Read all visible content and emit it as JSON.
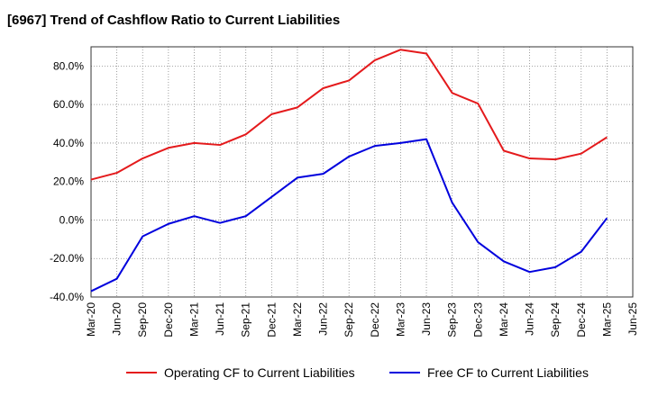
{
  "chart_data": {
    "type": "line",
    "title": "[6967]  Trend of Cashflow Ratio to Current Liabilities",
    "xlabel": "",
    "ylabel": "",
    "ylim": [
      -40,
      90
    ],
    "y_ticks": [
      -40,
      -20,
      0,
      20,
      40,
      60,
      80
    ],
    "y_tick_labels": [
      "-40.0%",
      "-20.0%",
      "0.0%",
      "20.0%",
      "40.0%",
      "60.0%",
      "80.0%"
    ],
    "x_tick_labels": [
      "Mar-20",
      "Jun-20",
      "Sep-20",
      "Dec-20",
      "Mar-21",
      "Jun-21",
      "Sep-21",
      "Dec-21",
      "Mar-22",
      "Jun-22",
      "Sep-22",
      "Dec-22",
      "Mar-23",
      "Jun-23",
      "Sep-23",
      "Dec-23",
      "Mar-24",
      "Jun-24",
      "Sep-24",
      "Dec-24",
      "Mar-25",
      "Jun-25"
    ],
    "grid": true,
    "legend_position": "bottom",
    "categories": [
      "Mar-20",
      "Jun-20",
      "Sep-20",
      "Dec-20",
      "Mar-21",
      "Jun-21",
      "Sep-21",
      "Dec-21",
      "Mar-22",
      "Jun-22",
      "Sep-22",
      "Dec-22",
      "Mar-23",
      "Jun-23",
      "Sep-23",
      "Dec-23",
      "Mar-24",
      "Jun-24",
      "Sep-24",
      "Dec-24",
      "Mar-25"
    ],
    "series": [
      {
        "name": "Operating CF to Current Liabilities",
        "color": "#e41a1c",
        "values": [
          21.0,
          24.5,
          32.0,
          37.5,
          40.0,
          39.0,
          44.5,
          55.0,
          58.5,
          68.5,
          72.5,
          83.0,
          88.5,
          86.5,
          66.0,
          60.5,
          36.0,
          32.0,
          31.5,
          34.5,
          43.0
        ]
      },
      {
        "name": "Free CF to Current Liabilities",
        "color": "#0000dd",
        "values": [
          -37.0,
          -30.5,
          -8.5,
          -2.0,
          2.0,
          -1.5,
          2.0,
          12.0,
          22.0,
          24.0,
          33.0,
          38.5,
          40.0,
          42.0,
          9.0,
          -11.5,
          -21.5,
          -27.0,
          -24.5,
          -16.5,
          1.0
        ]
      }
    ]
  }
}
